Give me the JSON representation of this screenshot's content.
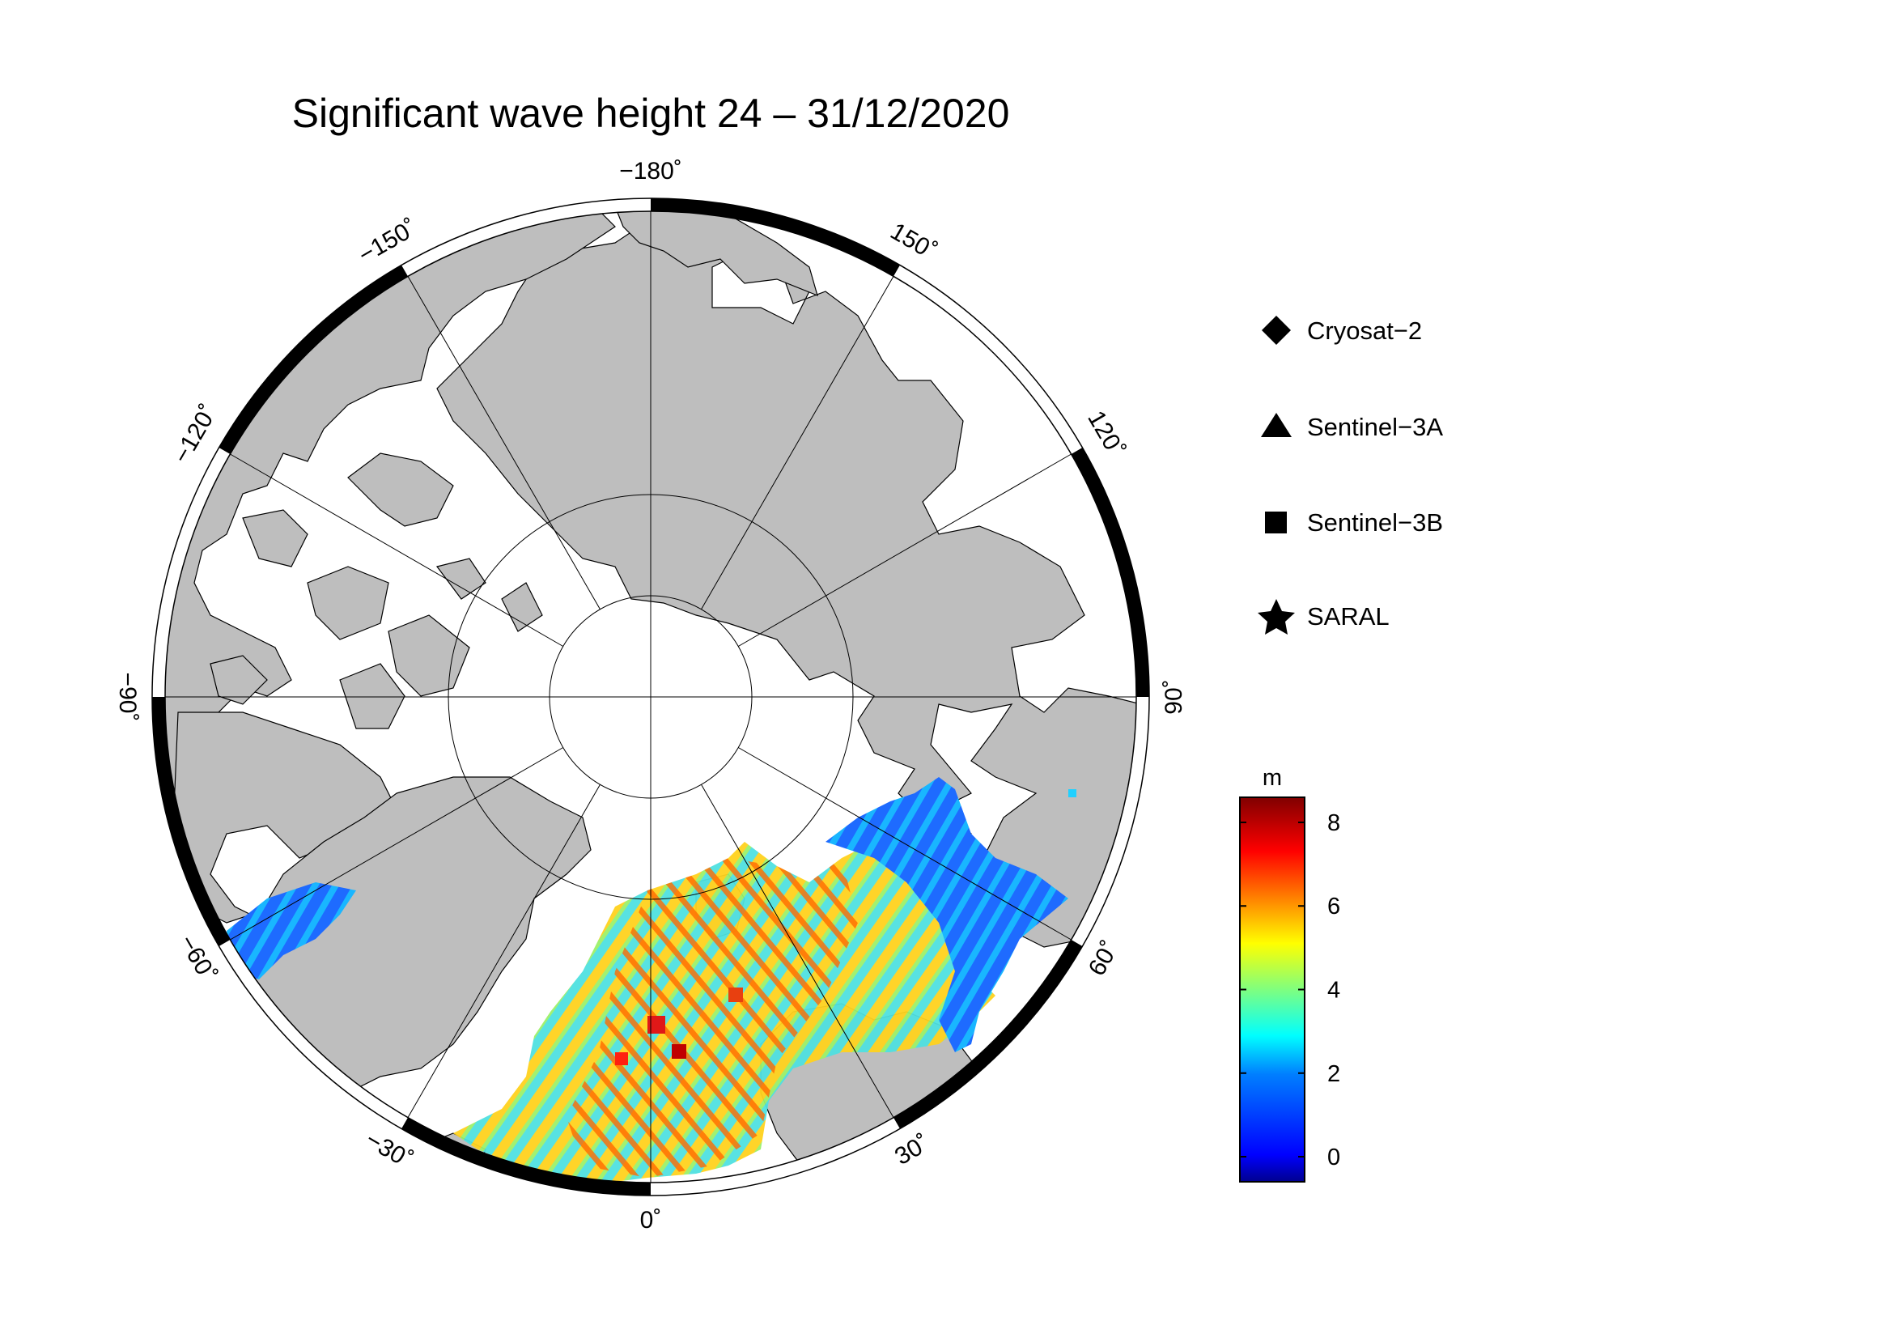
{
  "title": "Significant wave height 24 – 31/12/2020",
  "map": {
    "projection": "north polar stereographic",
    "center_lon_at_bottom": 0,
    "land_color": "#bebebe",
    "ocean_color": "#ffffff",
    "frame_color": "#000000",
    "longitude_labels": [
      {
        "lon": -180,
        "text": "−180˚"
      },
      {
        "lon": -150,
        "text": "−150˚"
      },
      {
        "lon": -120,
        "text": "−120˚"
      },
      {
        "lon": -90,
        "text": "−90˚"
      },
      {
        "lon": -60,
        "text": "−60˚"
      },
      {
        "lon": -30,
        "text": "−30˚"
      },
      {
        "lon": 0,
        "text": "0˚"
      },
      {
        "lon": 30,
        "text": "30˚"
      },
      {
        "lon": 60,
        "text": "60˚"
      },
      {
        "lon": 90,
        "text": "90˚"
      },
      {
        "lon": 120,
        "text": "120˚"
      },
      {
        "lon": 150,
        "text": "150˚"
      }
    ]
  },
  "legend": {
    "items": [
      {
        "label": "Cryosat−2",
        "icon": "diamond-icon"
      },
      {
        "label": "Sentinel−3A",
        "icon": "triangle-icon"
      },
      {
        "label": "Sentinel−3B",
        "icon": "square-icon"
      },
      {
        "label": "SARAL",
        "icon": "star-icon"
      }
    ]
  },
  "colorbar": {
    "unit": "m",
    "min": -0.6,
    "max": 8.6,
    "ticks": [
      {
        "value": 0,
        "label": "0"
      },
      {
        "value": 2,
        "label": "2"
      },
      {
        "value": 4,
        "label": "4"
      },
      {
        "value": 6,
        "label": "6"
      },
      {
        "value": 8,
        "label": "8"
      }
    ],
    "colormap": [
      "#00008f",
      "#0000ff",
      "#007fff",
      "#00ffff",
      "#7fff7f",
      "#ffff00",
      "#ff7f00",
      "#ff0000",
      "#800000"
    ]
  }
}
